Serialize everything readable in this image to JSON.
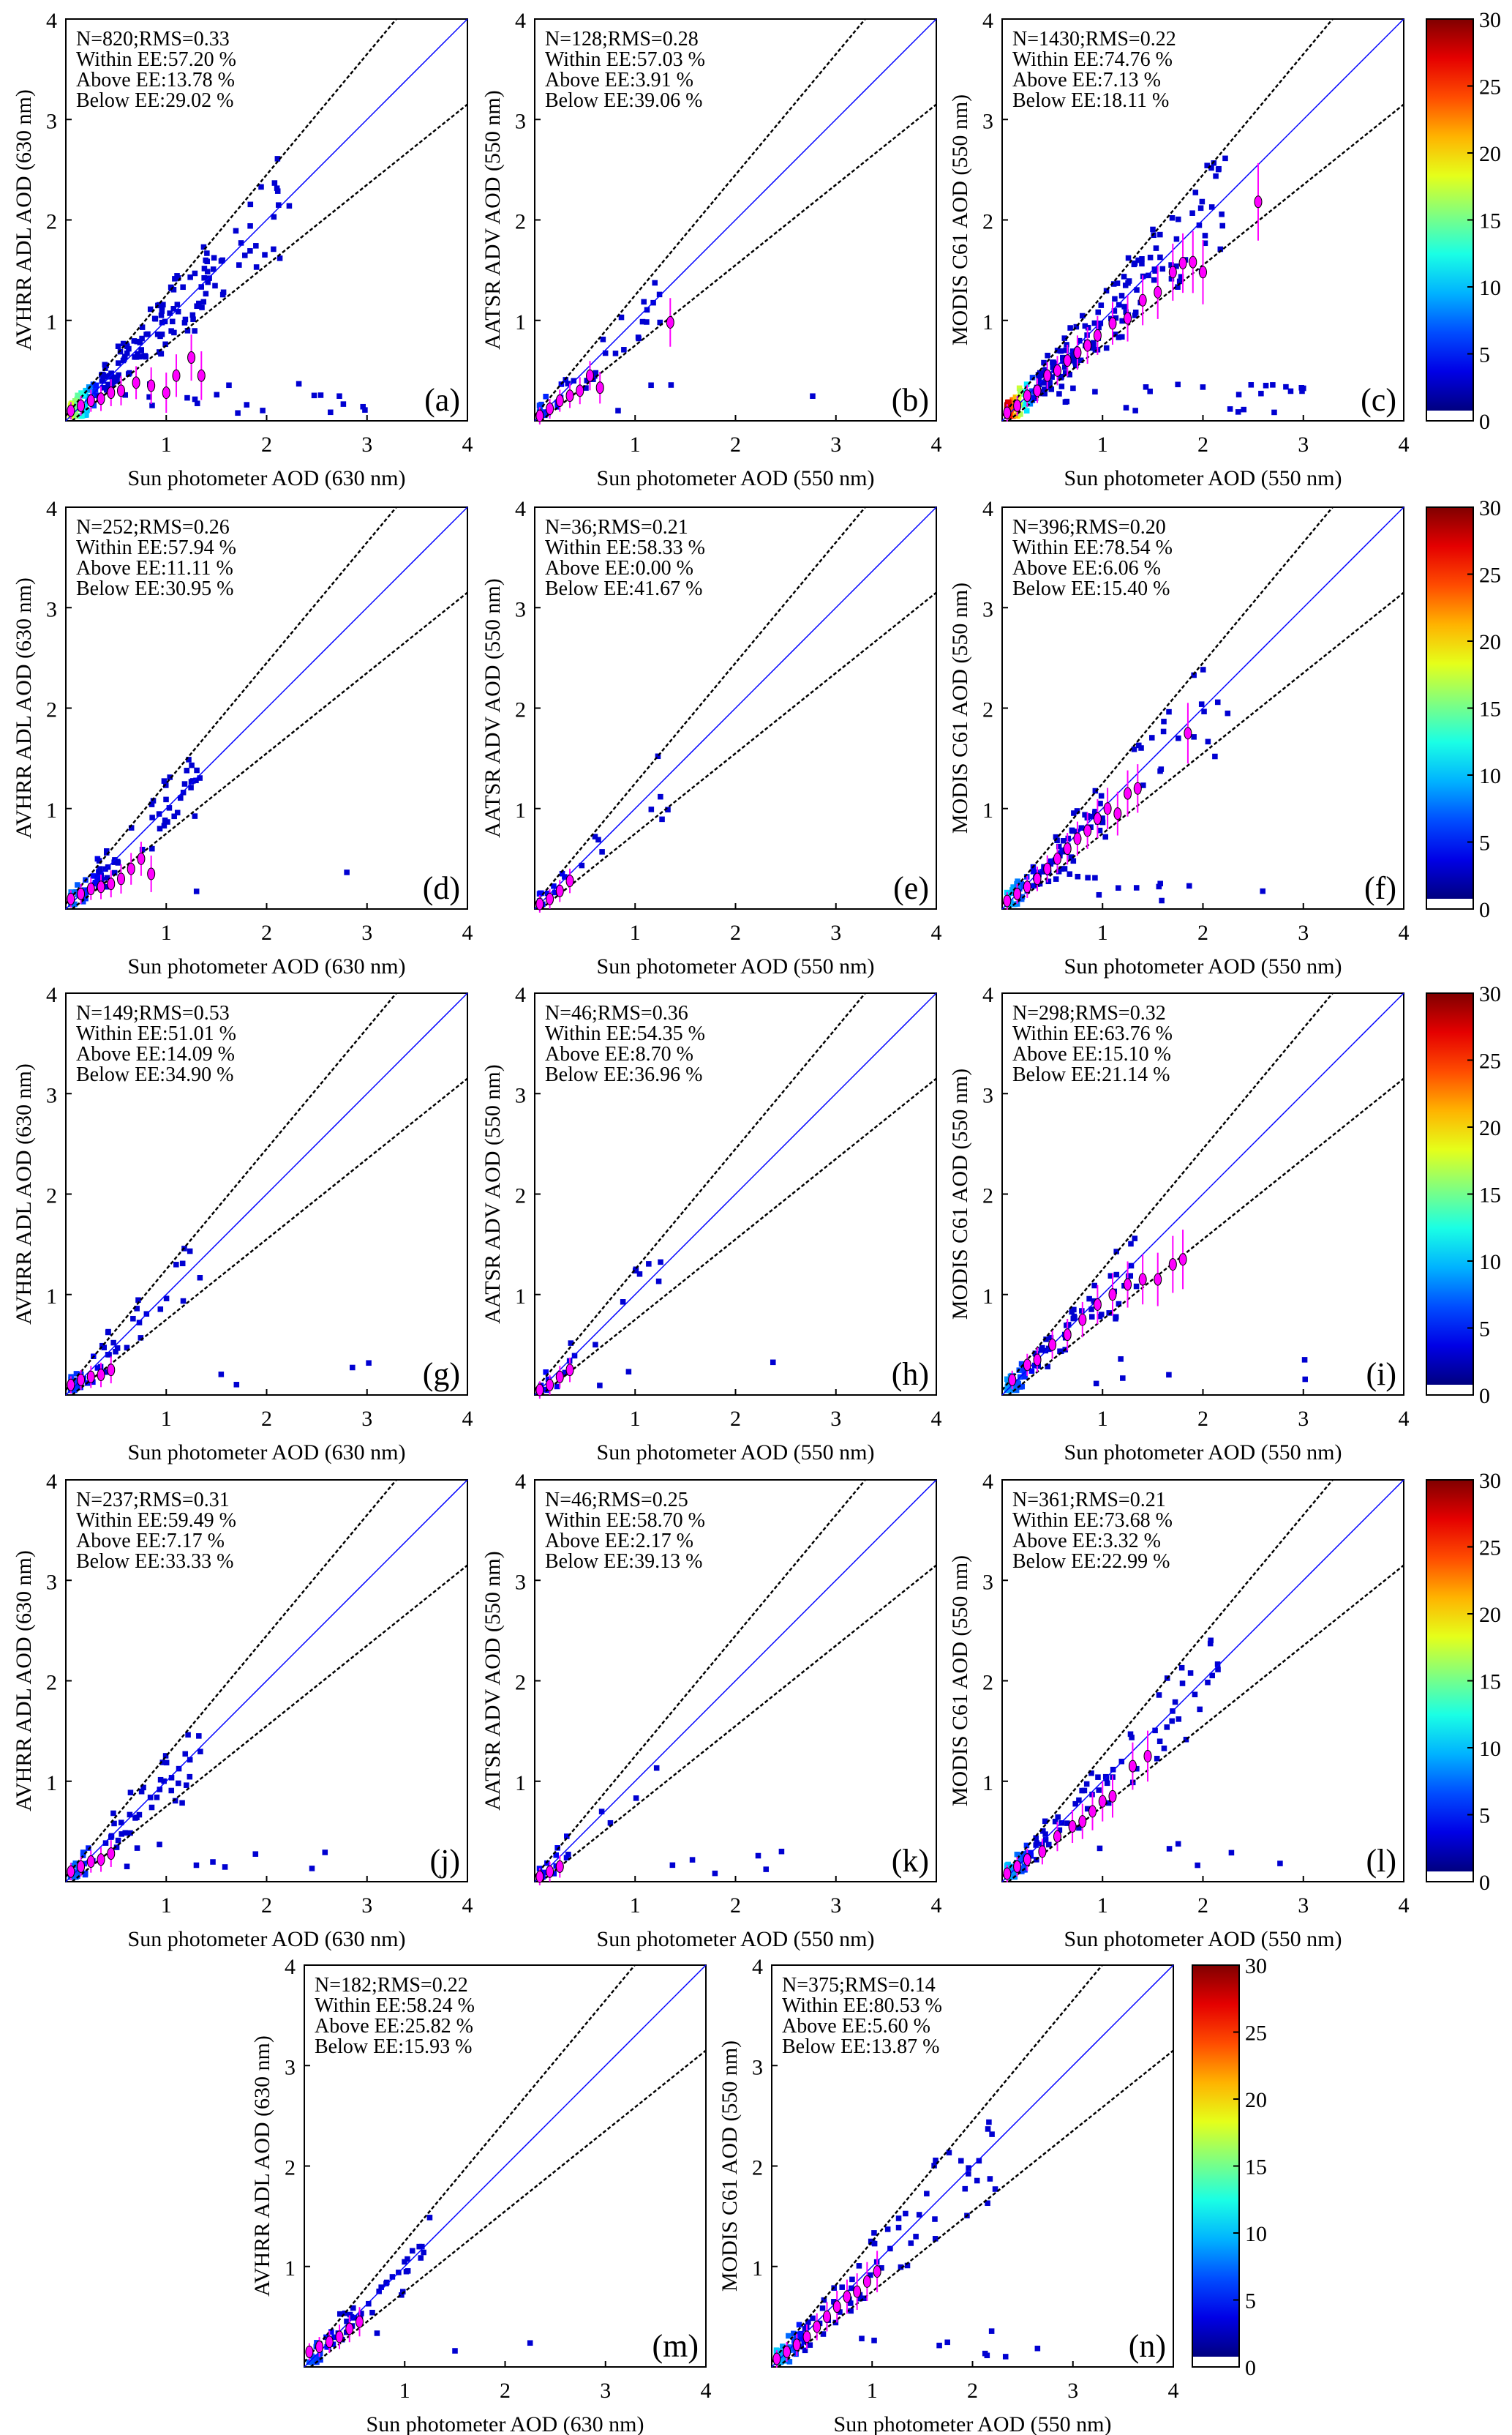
{
  "chart_data": {
    "type": "scatter",
    "xlim": [
      0,
      4
    ],
    "ylim": [
      0,
      4
    ],
    "x_ticks": [
      "1",
      "2",
      "3",
      "4"
    ],
    "y_ticks": [
      "1",
      "2",
      "3",
      "4"
    ],
    "reference_lines": [
      "1:1 line",
      "EE upper",
      "EE lower"
    ],
    "colorbar": {
      "ticks": [
        "0",
        "5",
        "10",
        "15",
        "20",
        "25",
        "30"
      ],
      "range": [
        0,
        30
      ]
    },
    "panels": [
      {
        "letter": "(a)",
        "xlabel": "Sun photometer AOD (630 nm)",
        "ylabel": "AVHRR ADL AOD (630 nm)",
        "stats": [
          "N=820;RMS=0.33",
          "Within EE:57.20 %",
          "Above EE:13.78 %",
          "Below EE:29.02 %"
        ],
        "n": 820,
        "means": [
          [
            0.05,
            0.1
          ],
          [
            0.15,
            0.15
          ],
          [
            0.25,
            0.2
          ],
          [
            0.35,
            0.22
          ],
          [
            0.45,
            0.28
          ],
          [
            0.55,
            0.3
          ],
          [
            0.7,
            0.38
          ],
          [
            0.85,
            0.35
          ],
          [
            1.0,
            0.28
          ],
          [
            1.1,
            0.45
          ],
          [
            1.25,
            0.63
          ],
          [
            1.35,
            0.45
          ]
        ]
      },
      {
        "letter": "(b)",
        "xlabel": "Sun photometer AOD (550 nm)",
        "ylabel": "AATSR ADV AOD (550 nm)",
        "stats": [
          "N=128;RMS=0.28",
          "Within EE:57.03 %",
          "Above EE:3.91 %",
          "Below EE:39.06 %"
        ],
        "n": 128,
        "means": [
          [
            0.05,
            0.05
          ],
          [
            0.15,
            0.12
          ],
          [
            0.25,
            0.2
          ],
          [
            0.35,
            0.25
          ],
          [
            0.45,
            0.3
          ],
          [
            0.55,
            0.45
          ],
          [
            0.65,
            0.33
          ],
          [
            1.35,
            0.98
          ]
        ]
      },
      {
        "letter": "(c)",
        "xlabel": "Sun photometer AOD (550 nm)",
        "ylabel": "MODIS C61 AOD (550 nm)",
        "stats": [
          "N=1430;RMS=0.22",
          "Within EE:74.76 %",
          "Above EE:7.13 %",
          "Below EE:18.11 %"
        ],
        "n": 1430,
        "means": [
          [
            0.05,
            0.08
          ],
          [
            0.15,
            0.15
          ],
          [
            0.25,
            0.25
          ],
          [
            0.35,
            0.3
          ],
          [
            0.45,
            0.45
          ],
          [
            0.55,
            0.5
          ],
          [
            0.65,
            0.6
          ],
          [
            0.75,
            0.68
          ],
          [
            0.85,
            0.75
          ],
          [
            0.95,
            0.85
          ],
          [
            1.1,
            0.97
          ],
          [
            1.25,
            1.02
          ],
          [
            1.4,
            1.2
          ],
          [
            1.55,
            1.28
          ],
          [
            1.7,
            1.48
          ],
          [
            1.8,
            1.57
          ],
          [
            1.9,
            1.58
          ],
          [
            2.0,
            1.48
          ],
          [
            2.55,
            2.18
          ]
        ]
      },
      {
        "letter": "(d)",
        "xlabel": "Sun photometer AOD (630 nm)",
        "ylabel": "AVHRR ADL AOD (630 nm)",
        "stats": [
          "N=252;RMS=0.26",
          "Within EE:57.94 %",
          "Above EE:11.11 %",
          "Below EE:30.95 %"
        ],
        "n": 252,
        "means": [
          [
            0.05,
            0.1
          ],
          [
            0.15,
            0.15
          ],
          [
            0.25,
            0.2
          ],
          [
            0.35,
            0.22
          ],
          [
            0.45,
            0.25
          ],
          [
            0.55,
            0.3
          ],
          [
            0.65,
            0.4
          ],
          [
            0.75,
            0.5
          ],
          [
            0.85,
            0.35
          ]
        ]
      },
      {
        "letter": "(e)",
        "xlabel": "Sun photometer AOD (550 nm)",
        "ylabel": "AATSR ADV AOD (550 nm)",
        "stats": [
          "N=36;RMS=0.21",
          "Within EE:58.33 %",
          "Above EE:0.00 %",
          "Below EE:41.67 %"
        ],
        "n": 36,
        "means": [
          [
            0.05,
            0.05
          ],
          [
            0.15,
            0.1
          ],
          [
            0.25,
            0.18
          ],
          [
            0.35,
            0.28
          ]
        ]
      },
      {
        "letter": "(f)",
        "xlabel": "Sun photometer AOD (550 nm)",
        "ylabel": "MODIS C61 AOD (550 nm)",
        "stats": [
          "N=396;RMS=0.20",
          "Within EE:78.54 %",
          "Above EE:6.06 %",
          "Below EE:15.40 %"
        ],
        "n": 396,
        "means": [
          [
            0.05,
            0.08
          ],
          [
            0.15,
            0.15
          ],
          [
            0.25,
            0.22
          ],
          [
            0.35,
            0.3
          ],
          [
            0.45,
            0.4
          ],
          [
            0.55,
            0.5
          ],
          [
            0.65,
            0.6
          ],
          [
            0.75,
            0.7
          ],
          [
            0.85,
            0.78
          ],
          [
            0.95,
            0.9
          ],
          [
            1.05,
            1.0
          ],
          [
            1.15,
            0.95
          ],
          [
            1.25,
            1.15
          ],
          [
            1.35,
            1.2
          ],
          [
            1.85,
            1.75
          ]
        ]
      },
      {
        "letter": "(g)",
        "xlabel": "Sun photometer AOD (630 nm)",
        "ylabel": "AVHRR ADL AOD (630 nm)",
        "stats": [
          "N=149;RMS=0.53",
          "Within EE:51.01 %",
          "Above EE:14.09 %",
          "Below EE:34.90 %"
        ],
        "n": 149,
        "means": [
          [
            0.05,
            0.1
          ],
          [
            0.15,
            0.15
          ],
          [
            0.25,
            0.18
          ],
          [
            0.35,
            0.2
          ],
          [
            0.45,
            0.25
          ]
        ]
      },
      {
        "letter": "(h)",
        "xlabel": "Sun photometer AOD (550 nm)",
        "ylabel": "AATSR ADV AOD (550 nm)",
        "stats": [
          "N=46;RMS=0.36",
          "Within EE:54.35 %",
          "Above EE:8.70 %",
          "Below EE:36.96 %"
        ],
        "n": 46,
        "means": [
          [
            0.05,
            0.05
          ],
          [
            0.15,
            0.1
          ],
          [
            0.25,
            0.18
          ],
          [
            0.35,
            0.25
          ]
        ]
      },
      {
        "letter": "(i)",
        "xlabel": "Sun photometer AOD (550 nm)",
        "ylabel": "MODIS C61 AOD (550 nm)",
        "stats": [
          "N=298;RMS=0.32",
          "Within EE:63.76 %",
          "Above EE:15.10 %",
          "Below EE:21.14 %"
        ],
        "n": 298,
        "means": [
          [
            0.1,
            0.15
          ],
          [
            0.25,
            0.3
          ],
          [
            0.35,
            0.35
          ],
          [
            0.5,
            0.5
          ],
          [
            0.65,
            0.6
          ],
          [
            0.8,
            0.75
          ],
          [
            0.95,
            0.9
          ],
          [
            1.1,
            1.0
          ],
          [
            1.25,
            1.1
          ],
          [
            1.4,
            1.15
          ],
          [
            1.55,
            1.15
          ],
          [
            1.7,
            1.3
          ],
          [
            1.8,
            1.35
          ]
        ]
      },
      {
        "letter": "(j)",
        "xlabel": "Sun photometer AOD (630 nm)",
        "ylabel": "AVHRR ADL AOD (630 nm)",
        "stats": [
          "N=237;RMS=0.31",
          "Within EE:59.49 %",
          "Above EE:7.17 %",
          "Below EE:33.33 %"
        ],
        "n": 237,
        "means": [
          [
            0.05,
            0.1
          ],
          [
            0.15,
            0.15
          ],
          [
            0.25,
            0.2
          ],
          [
            0.35,
            0.22
          ],
          [
            0.45,
            0.28
          ]
        ]
      },
      {
        "letter": "(k)",
        "xlabel": "Sun photometer AOD (550 nm)",
        "ylabel": "AATSR ADV AOD (550 nm)",
        "stats": [
          "N=46;RMS=0.25",
          "Within EE:58.70 %",
          "Above EE:2.17 %",
          "Below EE:39.13 %"
        ],
        "n": 46,
        "means": [
          [
            0.05,
            0.05
          ],
          [
            0.15,
            0.1
          ],
          [
            0.25,
            0.15
          ]
        ]
      },
      {
        "letter": "(l)",
        "xlabel": "Sun photometer AOD (550 nm)",
        "ylabel": "MODIS C61 AOD (550 nm)",
        "stats": [
          "N=361;RMS=0.21",
          "Within EE:73.68 %",
          "Above EE:3.32 %",
          "Below EE:22.99 %"
        ],
        "n": 361,
        "means": [
          [
            0.05,
            0.08
          ],
          [
            0.15,
            0.15
          ],
          [
            0.25,
            0.22
          ],
          [
            0.4,
            0.3
          ],
          [
            0.55,
            0.45
          ],
          [
            0.7,
            0.55
          ],
          [
            0.8,
            0.6
          ],
          [
            0.9,
            0.7
          ],
          [
            1.0,
            0.8
          ],
          [
            1.1,
            0.85
          ],
          [
            1.3,
            1.15
          ],
          [
            1.45,
            1.25
          ]
        ]
      },
      {
        "letter": "(m)",
        "xlabel": "Sun photometer AOD (630 nm)",
        "ylabel": "AVHRR ADL AOD (630 nm)",
        "stats": [
          "N=182;RMS=0.22",
          "Within EE:58.24 %",
          "Above EE:25.82 %",
          "Below EE:15.93 %"
        ],
        "n": 182,
        "means": [
          [
            0.05,
            0.15
          ],
          [
            0.15,
            0.2
          ],
          [
            0.25,
            0.25
          ],
          [
            0.35,
            0.3
          ],
          [
            0.45,
            0.38
          ],
          [
            0.55,
            0.45
          ]
        ]
      },
      {
        "letter": "(n)",
        "xlabel": "Sun photometer AOD (550 nm)",
        "ylabel": "MODIS C61 AOD (550 nm)",
        "stats": [
          "N=375;RMS=0.14",
          "Within EE:80.53 %",
          "Above EE:5.60 %",
          "Below EE:13.87 %"
        ],
        "n": 375,
        "means": [
          [
            0.05,
            0.08
          ],
          [
            0.15,
            0.15
          ],
          [
            0.25,
            0.22
          ],
          [
            0.35,
            0.3
          ],
          [
            0.45,
            0.4
          ],
          [
            0.55,
            0.5
          ],
          [
            0.65,
            0.6
          ],
          [
            0.75,
            0.7
          ],
          [
            0.85,
            0.75
          ],
          [
            0.95,
            0.85
          ],
          [
            1.05,
            0.95
          ]
        ]
      }
    ]
  },
  "colors": {
    "one_to_one": "#0000ff",
    "ee": "#000000",
    "mean": "#ff00ff",
    "density_low": "#00008f"
  }
}
